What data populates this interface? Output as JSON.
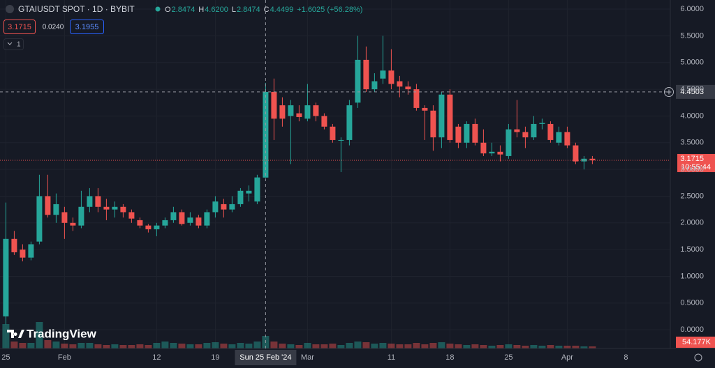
{
  "header": {
    "symbol": "GTAIUSDT SPOT · 1D · BYBIT",
    "items": [
      {
        "label": "O",
        "value": "2.8474"
      },
      {
        "label": "H",
        "value": "4.6200"
      },
      {
        "label": "L",
        "value": "2.8474"
      },
      {
        "label": "C",
        "value": "4.4499"
      }
    ],
    "change": "+1.6025 (+56.28%)",
    "sell": "3.1715",
    "spread": "0.0240",
    "buy": "3.1955",
    "indicators": "1",
    "logo": "TradingView"
  },
  "chart_data": {
    "type": "candlestick",
    "up_color": "#26a69a",
    "down_color": "#ef5350",
    "xlim": [
      -0.7,
      79.3
    ],
    "xticks": [
      {
        "value": 0,
        "label": "25"
      },
      {
        "value": 7,
        "label": "Feb"
      },
      {
        "value": 18,
        "label": "12"
      },
      {
        "value": 25,
        "label": "19"
      },
      {
        "value": 36,
        "label": "Mar"
      },
      {
        "value": 46,
        "label": "11"
      },
      {
        "value": 53,
        "label": "18"
      },
      {
        "value": 60,
        "label": "25"
      },
      {
        "value": 67,
        "label": "Apr"
      },
      {
        "value": 74,
        "label": "8"
      }
    ],
    "ylim": [
      -0.35,
      6.17
    ],
    "yticks": [
      {
        "value": 0,
        "label": "0.0000"
      },
      {
        "value": 0.5,
        "label": "0.5000"
      },
      {
        "value": 1,
        "label": "1.0000"
      },
      {
        "value": 1.5,
        "label": "1.5000"
      },
      {
        "value": 2,
        "label": "2.0000"
      },
      {
        "value": 2.5,
        "label": "2.5000"
      },
      {
        "value": 3,
        "label": "3.0000"
      },
      {
        "value": 3.5,
        "label": "3.5000"
      },
      {
        "value": 4,
        "label": "4.0000"
      },
      {
        "value": 4.5,
        "label": "4.5000"
      },
      {
        "value": 5,
        "label": "5.0000"
      },
      {
        "value": 5.5,
        "label": "5.5000"
      },
      {
        "value": 6,
        "label": "6.0000"
      }
    ],
    "open": [
      0.25,
      1.7,
      1.5,
      1.35,
      1.65,
      2.5,
      2.15,
      2.2,
      2.0,
      1.95,
      2.3,
      2.5,
      2.3,
      2.25,
      2.3,
      2.2,
      2.05,
      1.95,
      1.88,
      1.95,
      2.05,
      2.2,
      2.0,
      2.1,
      1.95,
      2.2,
      2.35,
      2.25,
      2.35,
      2.55,
      2.4,
      2.8474,
      4.45,
      4.2,
      4.0,
      4.05,
      3.95,
      4.2,
      4.0,
      3.8,
      3.55,
      3.55,
      4.25,
      5.05,
      4.5,
      4.7,
      4.85,
      4.65,
      4.55,
      4.5,
      4.15,
      4.1,
      3.6,
      4.4,
      3.8,
      3.5,
      3.85,
      3.5,
      3.3,
      3.33,
      3.25,
      3.75,
      3.7,
      3.6,
      3.85,
      3.85,
      3.5,
      3.7,
      3.45,
      3.15,
      3.2
    ],
    "high": [
      2.38,
      1.85,
      1.6,
      1.65,
      2.9,
      2.9,
      2.55,
      2.3,
      2.1,
      2.6,
      2.65,
      2.65,
      2.45,
      2.4,
      2.35,
      2.25,
      2.1,
      1.98,
      2.0,
      2.1,
      2.3,
      2.25,
      2.2,
      2.15,
      2.25,
      2.5,
      2.45,
      2.5,
      2.65,
      2.7,
      2.9,
      4.62,
      4.7,
      4.35,
      4.3,
      4.2,
      4.6,
      4.25,
      4.05,
      3.85,
      3.6,
      4.3,
      5.5,
      5.3,
      4.8,
      5.5,
      5.25,
      4.75,
      4.65,
      4.6,
      4.2,
      4.2,
      4.45,
      4.5,
      3.85,
      3.9,
      3.95,
      3.75,
      3.5,
      3.45,
      3.85,
      4.3,
      3.8,
      4.0,
      3.95,
      3.9,
      3.8,
      3.8,
      3.5,
      3.25,
      3.25
    ],
    "low": [
      0.1,
      1.4,
      1.28,
      1.3,
      1.6,
      2.1,
      2.0,
      1.7,
      1.85,
      1.9,
      2.2,
      2.2,
      2.05,
      2.1,
      2.1,
      2.0,
      1.9,
      1.82,
      1.75,
      1.9,
      2.0,
      1.95,
      1.95,
      1.9,
      1.9,
      2.1,
      2.1,
      2.2,
      2.3,
      2.4,
      2.35,
      2.8474,
      3.55,
      3.8,
      3.1,
      3.9,
      3.9,
      3.9,
      3.75,
      3.5,
      2.95,
      3.45,
      4.15,
      4.45,
      4.45,
      4.6,
      4.5,
      4.35,
      4.4,
      4.1,
      3.55,
      3.35,
      3.4,
      3.5,
      3.4,
      3.4,
      3.45,
      3.25,
      3.25,
      3.15,
      3.2,
      3.6,
      3.4,
      3.55,
      3.75,
      3.5,
      3.45,
      3.4,
      3.1,
      3.0,
      3.1
    ],
    "close": [
      1.7,
      1.45,
      1.35,
      1.6,
      2.5,
      2.15,
      2.35,
      2.0,
      1.95,
      2.3,
      2.5,
      2.3,
      2.25,
      2.3,
      2.2,
      2.08,
      1.95,
      1.88,
      1.95,
      2.05,
      2.2,
      1.98,
      2.1,
      1.95,
      2.2,
      2.4,
      2.25,
      2.35,
      2.6,
      2.6,
      2.85,
      4.4499,
      3.95,
      3.95,
      4.2,
      3.98,
      4.2,
      4.0,
      3.8,
      3.55,
      3.55,
      4.2,
      5.05,
      4.5,
      4.65,
      4.85,
      4.6,
      4.55,
      4.5,
      4.15,
      4.1,
      3.6,
      4.4,
      3.55,
      3.5,
      3.85,
      3.5,
      3.3,
      3.33,
      3.28,
      3.75,
      3.7,
      3.6,
      3.85,
      3.87,
      3.55,
      3.7,
      3.45,
      3.15,
      3.2,
      3.1715
    ],
    "volume": [
      630000,
      180000,
      144000,
      144000,
      684000,
      216000,
      180000,
      126000,
      108000,
      144000,
      144000,
      108000,
      90000,
      108000,
      90000,
      90000,
      108000,
      90000,
      144000,
      180000,
      144000,
      126000,
      108000,
      108000,
      144000,
      162000,
      126000,
      108000,
      144000,
      126000,
      180000,
      324000,
      180000,
      126000,
      108000,
      90000,
      144000,
      108000,
      108000,
      126000,
      90000,
      144000,
      180000,
      162000,
      126000,
      144000,
      126000,
      108000,
      108000,
      144000,
      108000,
      144000,
      162000,
      126000,
      108000,
      90000,
      108000,
      90000,
      72000,
      90000,
      108000,
      90000,
      72000,
      90000,
      72000,
      90000,
      72000,
      72000,
      72000,
      54000,
      54177
    ],
    "vlim": [
      0,
      9000000
    ],
    "volume_label": "54.177K",
    "last_price": 3.1715,
    "last_price_label": "3.1715",
    "countdown": "10:55:44",
    "crosshair_price": 4.4503,
    "crosshair_price_label": "4.4503",
    "crosshair_index": 31,
    "crosshair_date": "Sun 25 Feb '24"
  }
}
